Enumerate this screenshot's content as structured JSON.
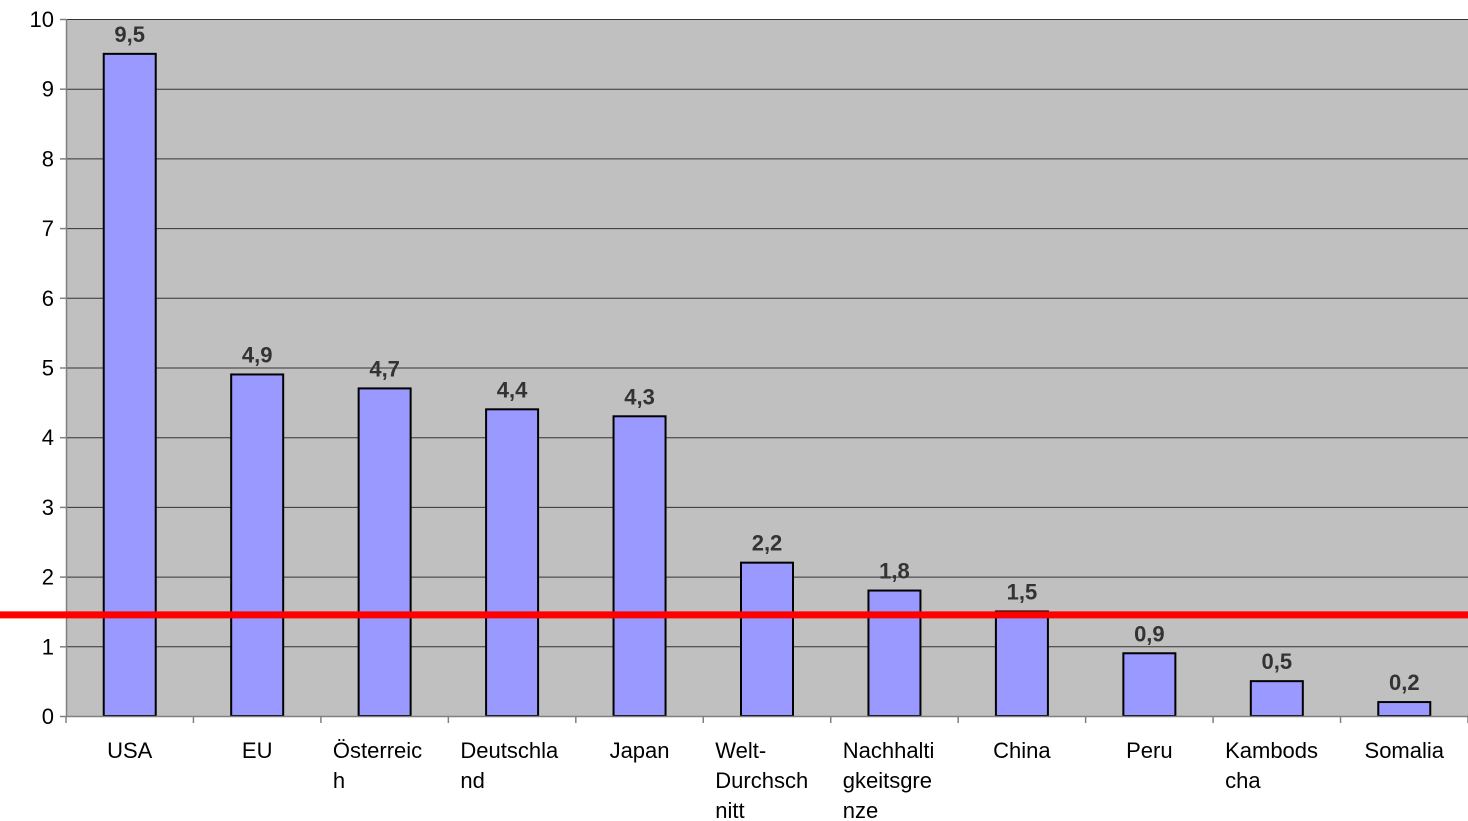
{
  "chart_data": {
    "type": "bar",
    "title": "",
    "xlabel": "",
    "ylabel": "",
    "ylim": [
      0,
      10
    ],
    "yticks": [
      "0",
      "1",
      "2",
      "3",
      "4",
      "5",
      "6",
      "7",
      "8",
      "9",
      "10"
    ],
    "grid": true,
    "legend": "none",
    "categories": [
      [
        "USA"
      ],
      [
        "EU"
      ],
      [
        "Österreic",
        "h"
      ],
      [
        "Deutschla",
        "nd"
      ],
      [
        "Japan"
      ],
      [
        "Welt-",
        "Durchsch",
        "nitt"
      ],
      [
        "Nachhalti",
        "gkeitsgre",
        "nze"
      ],
      [
        "China"
      ],
      [
        "Peru"
      ],
      [
        "Kambods",
        "cha"
      ],
      [
        "Somalia"
      ]
    ],
    "values": [
      9.5,
      4.9,
      4.7,
      4.4,
      4.3,
      2.2,
      1.8,
      1.5,
      0.9,
      0.5,
      0.2
    ],
    "data_labels": [
      "9,5",
      "4,9",
      "4,7",
      "4,4",
      "4,3",
      "2,2",
      "1,8",
      "1,5",
      "0,9",
      "0,5",
      "0,2"
    ],
    "reference_line": {
      "value": 1.45
    },
    "colors": {
      "bar": "#9999ff",
      "bar_border": "#000000",
      "plot_background": "#c0c0c0",
      "gridline": "#333333",
      "reference_line": "#ff0000",
      "data_label": "#333333"
    }
  }
}
